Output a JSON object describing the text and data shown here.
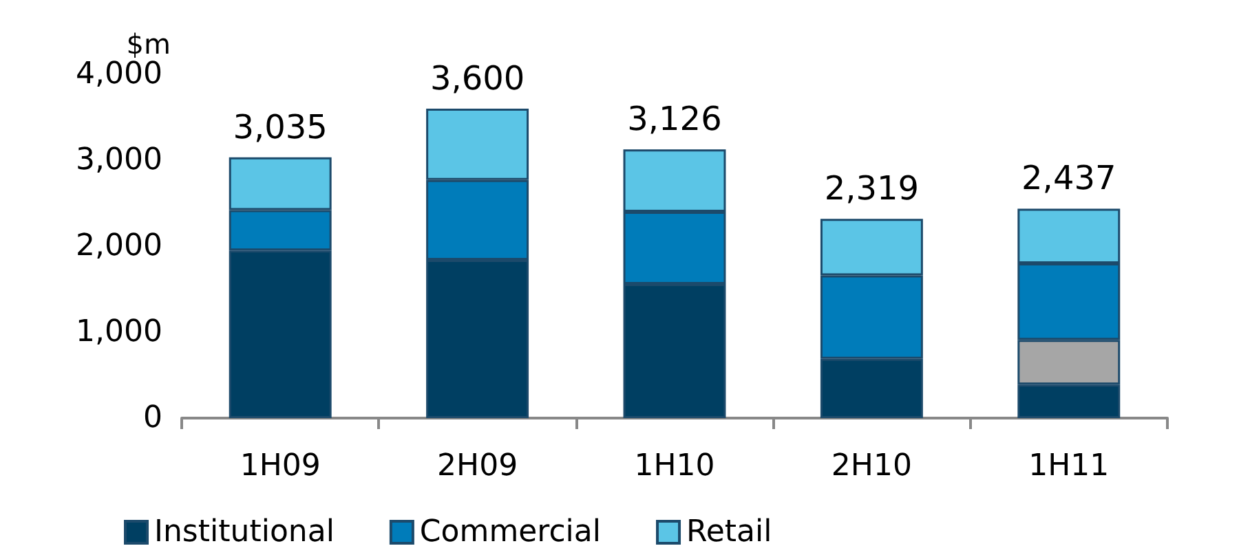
{
  "chart_data": {
    "type": "bar",
    "stacked": true,
    "ylabel": "$m",
    "categories": [
      "1H09",
      "2H09",
      "1H10",
      "2H10",
      "1H11"
    ],
    "series": [
      {
        "name": "Institutional",
        "color": "#003f62",
        "values": [
          1950,
          1840,
          1560,
          690,
          390
        ]
      },
      {
        "color": "#a6a6a6",
        "values": [
          null,
          null,
          null,
          null,
          520
        ]
      },
      {
        "name": "Commercial",
        "color": "#007cba",
        "values": [
          470,
          930,
          840,
          970,
          890
        ]
      },
      {
        "name": "Retail",
        "color": "#5bc5e6",
        "values": [
          615,
          830,
          726,
          659,
          637
        ]
      }
    ],
    "totals": [
      "3,035",
      "3,600",
      "3,126",
      "2,319",
      "2,437"
    ],
    "ylim": [
      0,
      4000
    ],
    "yticks": [
      {
        "value": 0,
        "label": "0"
      },
      {
        "value": 1000,
        "label": "1,000"
      },
      {
        "value": 2000,
        "label": "2,000"
      },
      {
        "value": 3000,
        "label": "3,000"
      },
      {
        "value": 4000,
        "label": "4,000"
      }
    ],
    "grid": false,
    "legend": "bottom"
  }
}
